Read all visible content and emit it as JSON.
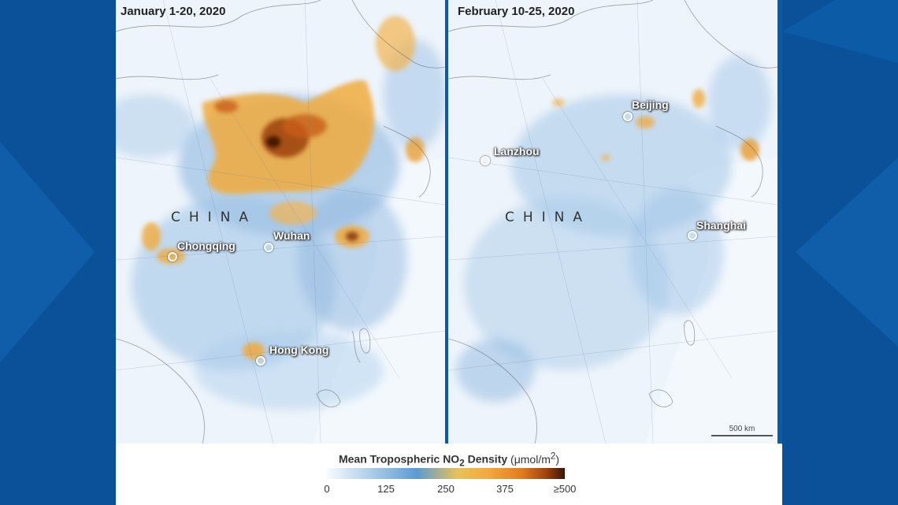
{
  "panels": [
    {
      "date": "January 1-20, 2020",
      "country": "CHINA",
      "cities": [
        "Chongqing",
        "Wuhan",
        "Hong Kong"
      ]
    },
    {
      "date": "February 10-25, 2020",
      "country": "CHINA",
      "cities": [
        "Beijing",
        "Lanzhou",
        "Shanghai"
      ]
    }
  ],
  "scale_bar": "500 km",
  "legend": {
    "title_prefix": "Mean Tropospheric NO",
    "title_sub": "2",
    "title_suffix": " Density",
    "unit": " (μmol/m",
    "unit_sup": "2",
    "unit_close": ")",
    "ticks": [
      "0",
      "125",
      "250",
      "375",
      "≥500"
    ]
  },
  "colors": {
    "background": "#0a4f94",
    "low": "#9ec4e6",
    "mid": "#f2a93b",
    "high": "#3c1405"
  }
}
